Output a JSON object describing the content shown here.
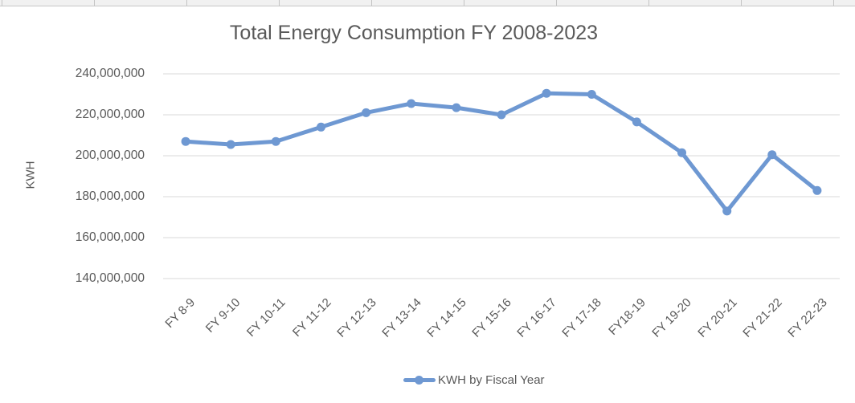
{
  "chart_data": {
    "type": "line",
    "title": "Total Energy Consumption FY 2008-2023",
    "ylabel": "KWH",
    "xlabel": "",
    "categories": [
      "FY 8-9",
      "FY 9-10",
      "FY 10-11",
      "FY 11-12",
      "FY 12-13",
      "FY 13-14",
      "FY 14-15",
      "FY 15-16",
      "FY 16-17",
      "FY 17-18",
      "FY18-19",
      "FY 19-20",
      "FY 20-21",
      "FY 21-22",
      "FY 22-23"
    ],
    "series": [
      {
        "name": "KWH by Fiscal Year",
        "values": [
          207000000,
          205500000,
          207000000,
          214000000,
          221000000,
          225500000,
          223500000,
          220000000,
          230500000,
          230000000,
          216500000,
          201500000,
          173000000,
          200500000,
          183000000
        ]
      }
    ],
    "ylim": [
      140000000,
      240000000
    ],
    "ytick_step": 20000000,
    "ytick_labels": [
      "240,000,000",
      "220,000,000",
      "200,000,000",
      "180,000,000",
      "160,000,000",
      "140,000,000"
    ],
    "grid": true,
    "legend_position": "bottom",
    "colors": {
      "series": "#6E98D2",
      "grid": "#D9D9D9",
      "text": "#595959"
    }
  },
  "legend": {
    "label": "KWH by Fiscal Year"
  }
}
